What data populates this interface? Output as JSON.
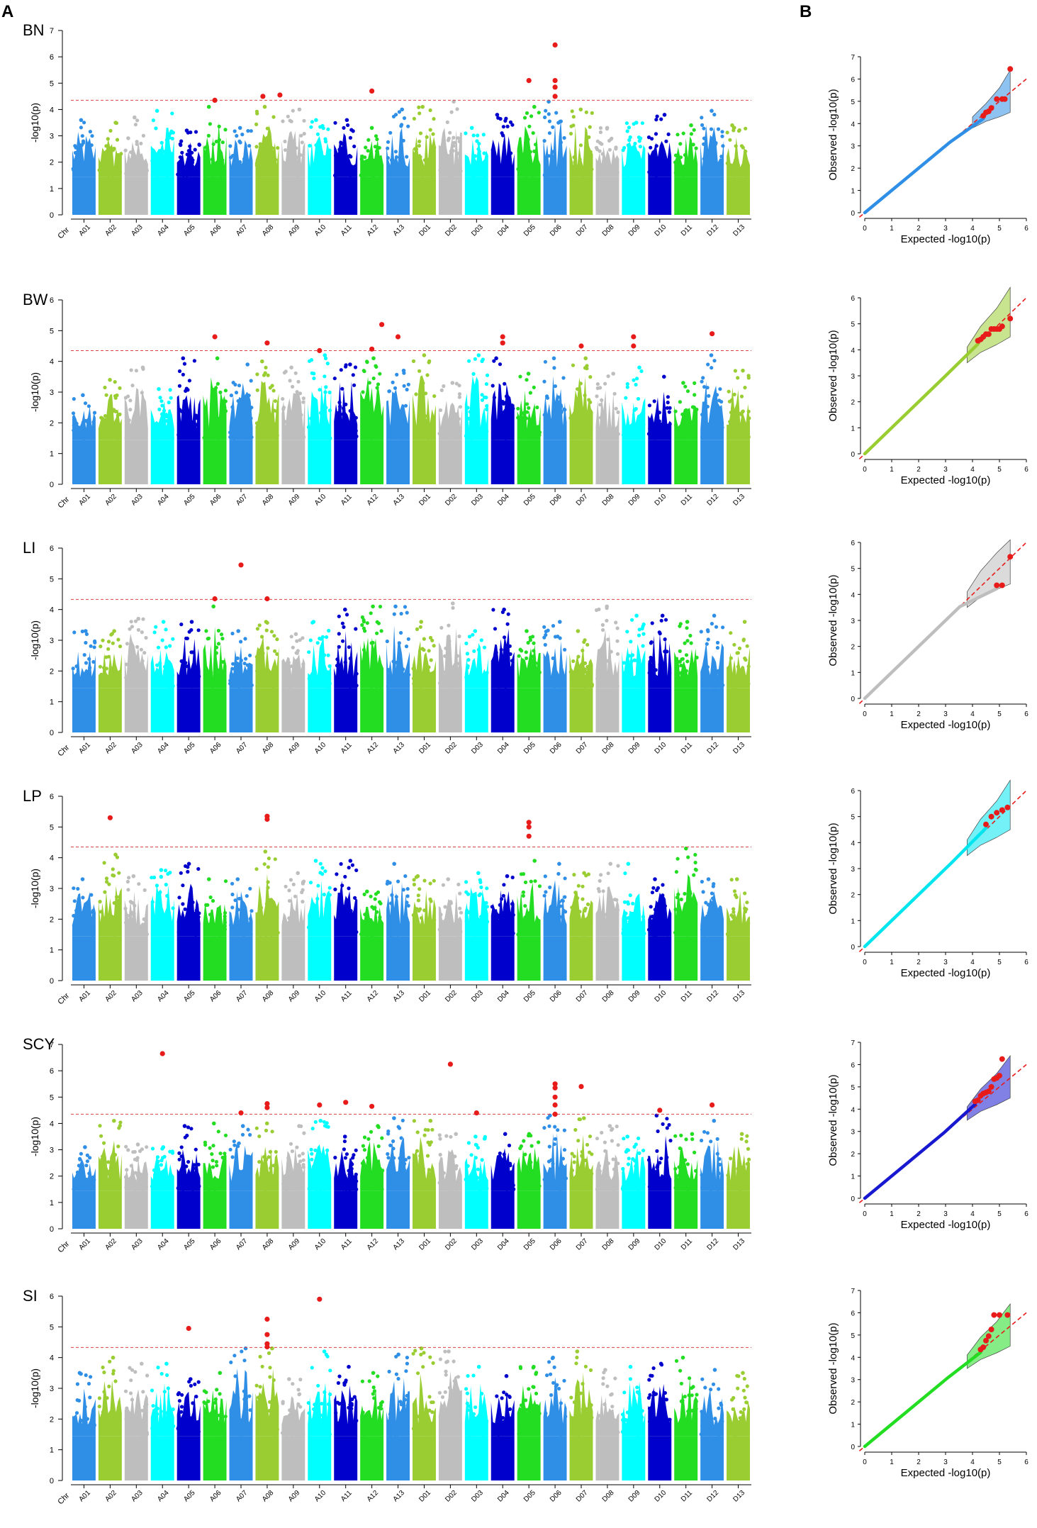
{
  "figure": {
    "panel_a_label": "A",
    "panel_b_label": "B"
  },
  "chromosomes": [
    "A01",
    "A02",
    "A03",
    "A04",
    "A05",
    "A06",
    "A07",
    "A08",
    "A09",
    "A10",
    "A11",
    "A12",
    "A13",
    "D01",
    "D02",
    "D03",
    "D04",
    "D05",
    "D06",
    "D07",
    "D08",
    "D09",
    "D10",
    "D11",
    "D12",
    "D13"
  ],
  "chromosome_colors": [
    "#2f8fe6",
    "#9acd32",
    "#bebebe",
    "#00ffff",
    "#0000cd",
    "#22dd22",
    "#2f8fe6",
    "#9acd32",
    "#bebebe",
    "#00ffff",
    "#0000cd",
    "#22dd22",
    "#2f8fe6",
    "#9acd32",
    "#bebebe",
    "#00ffff",
    "#0000cd",
    "#22dd22",
    "#2f8fe6",
    "#9acd32",
    "#bebebe",
    "#00ffff",
    "#0000cd",
    "#22dd22",
    "#2f8fe6",
    "#9acd32"
  ],
  "highlight_color": "#e81b1b",
  "threshold_color": "#e04040",
  "chart_data": [
    {
      "type": "scatter",
      "subtype": "manhattan",
      "title": "BN",
      "xlabel": "Chr",
      "ylabel": "-log10(p)",
      "ylim": [
        0,
        7
      ],
      "yticks": [
        0,
        1,
        2,
        3,
        4,
        5,
        6,
        7
      ],
      "threshold": 4.35,
      "chr_peaks": [
        3.6,
        3.5,
        3.7,
        3.95,
        3.2,
        4.1,
        3.3,
        4.1,
        4.0,
        3.6,
        3.6,
        3.3,
        4.0,
        4.1,
        4.3,
        3.3,
        3.8,
        4.1,
        4.3,
        4.0,
        3.3,
        3.5,
        3.8,
        3.4,
        3.95,
        3.4
      ],
      "significant_points": [
        {
          "chr": "A06",
          "value": 4.35
        },
        {
          "chr": "A08",
          "value": 4.5
        },
        {
          "chr": "A08",
          "value": 4.55
        },
        {
          "chr": "A12",
          "value": 4.7
        },
        {
          "chr": "D05",
          "value": 5.1
        },
        {
          "chr": "D06",
          "value": 6.45
        },
        {
          "chr": "D06",
          "value": 5.1
        },
        {
          "chr": "D06",
          "value": 4.85
        },
        {
          "chr": "D06",
          "value": 4.5
        }
      ]
    },
    {
      "type": "scatter",
      "subtype": "manhattan",
      "title": "BW",
      "xlabel": "Chr",
      "ylabel": "-log10(p)",
      "ylim": [
        0,
        6
      ],
      "yticks": [
        0,
        1,
        2,
        3,
        4,
        5,
        6
      ],
      "threshold": 4.35,
      "chr_peaks": [
        2.9,
        3.4,
        3.8,
        3.1,
        4.1,
        4.1,
        3.9,
        4.0,
        3.8,
        4.2,
        3.9,
        4.1,
        3.7,
        4.2,
        3.3,
        4.2,
        4.1,
        3.6,
        4.1,
        4.1,
        3.6,
        3.8,
        3.5,
        3.3,
        4.2,
        3.7
      ],
      "significant_points": [
        {
          "chr": "A06",
          "value": 4.8
        },
        {
          "chr": "A08",
          "value": 4.6
        },
        {
          "chr": "A10",
          "value": 4.35
        },
        {
          "chr": "A12",
          "value": 4.4
        },
        {
          "chr": "A12",
          "value": 5.2
        },
        {
          "chr": "A13",
          "value": 4.8
        },
        {
          "chr": "D04",
          "value": 4.8
        },
        {
          "chr": "D04",
          "value": 4.6
        },
        {
          "chr": "D07",
          "value": 4.5
        },
        {
          "chr": "D09",
          "value": 4.8
        },
        {
          "chr": "D09",
          "value": 4.5
        },
        {
          "chr": "D12",
          "value": 4.9
        }
      ]
    },
    {
      "type": "scatter",
      "subtype": "manhattan",
      "title": "LI",
      "xlabel": "Chr",
      "ylabel": "-log10(p)",
      "ylim": [
        0,
        6
      ],
      "yticks": [
        0,
        1,
        2,
        3,
        4,
        5,
        6
      ],
      "threshold": 4.33,
      "chr_peaks": [
        3.3,
        3.3,
        3.7,
        3.6,
        3.6,
        4.1,
        3.3,
        3.6,
        3.2,
        3.6,
        4.0,
        4.1,
        4.1,
        3.6,
        4.2,
        3.3,
        4.0,
        3.3,
        3.6,
        3.3,
        4.1,
        3.8,
        3.8,
        3.6,
        3.8,
        3.6
      ],
      "significant_points": [
        {
          "chr": "A06",
          "value": 4.35
        },
        {
          "chr": "A07",
          "value": 5.45
        },
        {
          "chr": "A08",
          "value": 4.35
        }
      ]
    },
    {
      "type": "scatter",
      "subtype": "manhattan",
      "title": "LP",
      "xlabel": "Chr",
      "ylabel": "-log10(p)",
      "ylim": [
        0,
        6
      ],
      "yticks": [
        0,
        1,
        2,
        3,
        4,
        5,
        6
      ],
      "threshold": 4.35,
      "chr_peaks": [
        3.3,
        4.1,
        3.4,
        3.6,
        3.8,
        3.3,
        3.3,
        4.2,
        3.5,
        3.9,
        3.9,
        2.9,
        3.8,
        3.4,
        3.3,
        3.5,
        3.4,
        3.9,
        3.8,
        3.5,
        3.8,
        3.8,
        3.3,
        4.3,
        3.3,
        3.3
      ],
      "significant_points": [
        {
          "chr": "A02",
          "value": 5.3
        },
        {
          "chr": "A08",
          "value": 5.35
        },
        {
          "chr": "A08",
          "value": 5.25
        },
        {
          "chr": "D05",
          "value": 5.15
        },
        {
          "chr": "D05",
          "value": 5.0
        },
        {
          "chr": "D05",
          "value": 4.7
        }
      ]
    },
    {
      "type": "scatter",
      "subtype": "manhattan",
      "title": "SCY",
      "xlabel": "Chr",
      "ylabel": "-log10(p)",
      "ylim": [
        0,
        7
      ],
      "yticks": [
        0,
        1,
        2,
        3,
        4,
        5,
        6,
        7
      ],
      "threshold": 4.35,
      "chr_peaks": [
        3.1,
        4.1,
        3.2,
        3.1,
        3.9,
        4.0,
        3.9,
        4.0,
        3.9,
        4.1,
        3.5,
        3.9,
        4.2,
        4.1,
        3.6,
        3.5,
        3.6,
        3.6,
        4.3,
        4.2,
        3.9,
        3.5,
        4.3,
        3.6,
        4.1,
        3.6
      ],
      "significant_points": [
        {
          "chr": "A04",
          "value": 6.65
        },
        {
          "chr": "A07",
          "value": 4.4
        },
        {
          "chr": "A08",
          "value": 4.6
        },
        {
          "chr": "A08",
          "value": 4.75
        },
        {
          "chr": "A10",
          "value": 4.7
        },
        {
          "chr": "A11",
          "value": 4.8
        },
        {
          "chr": "A12",
          "value": 4.65
        },
        {
          "chr": "D02",
          "value": 6.25
        },
        {
          "chr": "D03",
          "value": 4.4
        },
        {
          "chr": "D06",
          "value": 5.5
        },
        {
          "chr": "D06",
          "value": 5.35
        },
        {
          "chr": "D06",
          "value": 5.0
        },
        {
          "chr": "D06",
          "value": 4.7
        },
        {
          "chr": "D06",
          "value": 4.35
        },
        {
          "chr": "D07",
          "value": 5.4
        },
        {
          "chr": "D10",
          "value": 4.5
        },
        {
          "chr": "D12",
          "value": 4.7
        }
      ]
    },
    {
      "type": "scatter",
      "subtype": "manhattan",
      "title": "SI",
      "xlabel": "Chr",
      "ylabel": "-log10(p)",
      "ylim": [
        0,
        6
      ],
      "yticks": [
        0,
        1,
        2,
        3,
        4,
        5,
        6
      ],
      "threshold": 4.33,
      "chr_peaks": [
        3.5,
        4.0,
        3.8,
        3.8,
        3.3,
        3.5,
        4.3,
        4.3,
        3.3,
        4.2,
        3.7,
        3.5,
        4.1,
        4.3,
        4.2,
        3.7,
        3.4,
        3.7,
        4.0,
        4.2,
        3.6,
        3.7,
        3.8,
        4.0,
        3.6,
        3.5
      ],
      "significant_points": [
        {
          "chr": "A05",
          "value": 4.95
        },
        {
          "chr": "A08",
          "value": 5.25
        },
        {
          "chr": "A08",
          "value": 4.75
        },
        {
          "chr": "A08",
          "value": 4.45
        },
        {
          "chr": "A08",
          "value": 4.35
        },
        {
          "chr": "A10",
          "value": 5.9
        }
      ]
    },
    {
      "type": "scatter",
      "subtype": "qq",
      "trait": "BN",
      "color": "#2f8fe6",
      "xlabel": "Expected -log10(p)",
      "ylabel": "Observed -log10(p)",
      "xlim": [
        0,
        6
      ],
      "ylim": [
        0,
        7
      ],
      "xticks": [
        0,
        1,
        2,
        3,
        4,
        5,
        6
      ],
      "yticks": [
        0,
        1,
        2,
        3,
        4,
        5,
        6,
        7
      ],
      "band_upper": [
        [
          4.0,
          4.3
        ],
        [
          4.5,
          4.9
        ],
        [
          5.0,
          5.6
        ],
        [
          5.4,
          6.4
        ]
      ],
      "band_lower": [
        [
          4.0,
          3.8
        ],
        [
          4.5,
          4.1
        ],
        [
          5.0,
          4.3
        ],
        [
          5.4,
          4.5
        ]
      ],
      "observed_tail": [
        [
          4.4,
          4.35
        ],
        [
          4.5,
          4.5
        ],
        [
          4.6,
          4.55
        ],
        [
          4.7,
          4.7
        ],
        [
          4.9,
          5.1
        ],
        [
          5.1,
          5.1
        ],
        [
          5.2,
          5.1
        ],
        [
          5.4,
          6.45
        ]
      ]
    },
    {
      "type": "scatter",
      "subtype": "qq",
      "trait": "BW",
      "color": "#9acd32",
      "xlabel": "Expected -log10(p)",
      "ylabel": "Observed -log10(p)",
      "xlim": [
        0,
        6
      ],
      "ylim": [
        0,
        6
      ],
      "xticks": [
        0,
        1,
        2,
        3,
        4,
        5,
        6
      ],
      "yticks": [
        0,
        1,
        2,
        3,
        4,
        5,
        6
      ],
      "band_upper": [
        [
          3.8,
          4.1
        ],
        [
          4.3,
          4.9
        ],
        [
          4.9,
          5.6
        ],
        [
          5.4,
          6.4
        ]
      ],
      "band_lower": [
        [
          3.8,
          3.5
        ],
        [
          4.3,
          3.9
        ],
        [
          4.9,
          4.2
        ],
        [
          5.4,
          4.5
        ]
      ],
      "observed_tail": [
        [
          4.2,
          4.35
        ],
        [
          4.3,
          4.4
        ],
        [
          4.4,
          4.5
        ],
        [
          4.5,
          4.6
        ],
        [
          4.6,
          4.6
        ],
        [
          4.7,
          4.8
        ],
        [
          4.8,
          4.8
        ],
        [
          4.9,
          4.8
        ],
        [
          5.0,
          4.8
        ],
        [
          5.1,
          4.9
        ],
        [
          5.4,
          5.2
        ]
      ]
    },
    {
      "type": "scatter",
      "subtype": "qq",
      "trait": "LI",
      "color": "#bebebe",
      "xlabel": "Expected -log10(p)",
      "ylabel": "Observed -log10(p)",
      "xlim": [
        0,
        6
      ],
      "ylim": [
        0,
        6
      ],
      "xticks": [
        0,
        1,
        2,
        3,
        4,
        5,
        6
      ],
      "yticks": [
        0,
        1,
        2,
        3,
        4,
        5,
        6
      ],
      "band_upper": [
        [
          3.8,
          4.1
        ],
        [
          4.3,
          4.9
        ],
        [
          4.9,
          5.6
        ],
        [
          5.4,
          6.1
        ]
      ],
      "band_lower": [
        [
          3.8,
          3.5
        ],
        [
          4.3,
          3.9
        ],
        [
          4.9,
          4.2
        ],
        [
          5.4,
          4.4
        ]
      ],
      "observed_tail": [
        [
          4.9,
          4.35
        ],
        [
          5.1,
          4.35
        ],
        [
          5.4,
          5.45
        ]
      ]
    },
    {
      "type": "scatter",
      "subtype": "qq",
      "trait": "LP",
      "color": "#00e5ee",
      "xlabel": "Expected -log10(p)",
      "ylabel": "Observed -log10(p)",
      "xlim": [
        0,
        6
      ],
      "ylim": [
        0,
        6
      ],
      "xticks": [
        0,
        1,
        2,
        3,
        4,
        5,
        6
      ],
      "yticks": [
        0,
        1,
        2,
        3,
        4,
        5,
        6
      ],
      "band_upper": [
        [
          3.8,
          4.1
        ],
        [
          4.3,
          4.9
        ],
        [
          4.9,
          5.6
        ],
        [
          5.4,
          6.4
        ]
      ],
      "band_lower": [
        [
          3.8,
          3.5
        ],
        [
          4.3,
          3.9
        ],
        [
          4.9,
          4.2
        ],
        [
          5.4,
          4.5
        ]
      ],
      "observed_tail": [
        [
          4.5,
          4.7
        ],
        [
          4.7,
          5.0
        ],
        [
          4.9,
          5.15
        ],
        [
          5.1,
          5.25
        ],
        [
          5.3,
          5.35
        ]
      ]
    },
    {
      "type": "scatter",
      "subtype": "qq",
      "trait": "SCY",
      "color": "#1818d0",
      "xlabel": "Expected -log10(p)",
      "ylabel": "Observed -log10(p)",
      "xlim": [
        0,
        6
      ],
      "ylim": [
        0,
        7
      ],
      "xticks": [
        0,
        1,
        2,
        3,
        4,
        5,
        6
      ],
      "yticks": [
        0,
        1,
        2,
        3,
        4,
        5,
        6,
        7
      ],
      "band_upper": [
        [
          3.8,
          4.1
        ],
        [
          4.3,
          4.9
        ],
        [
          4.9,
          5.6
        ],
        [
          5.4,
          6.4
        ]
      ],
      "band_lower": [
        [
          3.8,
          3.5
        ],
        [
          4.3,
          3.9
        ],
        [
          4.9,
          4.2
        ],
        [
          5.4,
          4.5
        ]
      ],
      "observed_tail": [
        [
          4.1,
          4.35
        ],
        [
          4.2,
          4.4
        ],
        [
          4.3,
          4.6
        ],
        [
          4.4,
          4.7
        ],
        [
          4.5,
          4.75
        ],
        [
          4.6,
          4.8
        ],
        [
          4.7,
          5.0
        ],
        [
          4.8,
          5.35
        ],
        [
          4.9,
          5.4
        ],
        [
          5.0,
          5.5
        ],
        [
          5.1,
          6.25
        ]
      ]
    },
    {
      "type": "scatter",
      "subtype": "qq",
      "trait": "SI",
      "color": "#22dd22",
      "xlabel": "Expected -log10(p)",
      "ylabel": "Observed -log10(p)",
      "xlim": [
        0,
        6
      ],
      "ylim": [
        0,
        7
      ],
      "xticks": [
        0,
        1,
        2,
        3,
        4,
        5,
        6
      ],
      "yticks": [
        0,
        1,
        2,
        3,
        4,
        5,
        6,
        7
      ],
      "band_upper": [
        [
          3.8,
          4.1
        ],
        [
          4.3,
          4.9
        ],
        [
          4.9,
          5.6
        ],
        [
          5.4,
          6.4
        ]
      ],
      "band_lower": [
        [
          3.8,
          3.5
        ],
        [
          4.3,
          3.9
        ],
        [
          4.9,
          4.2
        ],
        [
          5.4,
          4.5
        ]
      ],
      "observed_tail": [
        [
          4.3,
          4.35
        ],
        [
          4.4,
          4.45
        ],
        [
          4.5,
          4.75
        ],
        [
          4.6,
          4.95
        ],
        [
          4.7,
          5.25
        ],
        [
          4.8,
          5.9
        ],
        [
          5.0,
          5.9
        ],
        [
          5.3,
          5.9
        ]
      ]
    }
  ]
}
